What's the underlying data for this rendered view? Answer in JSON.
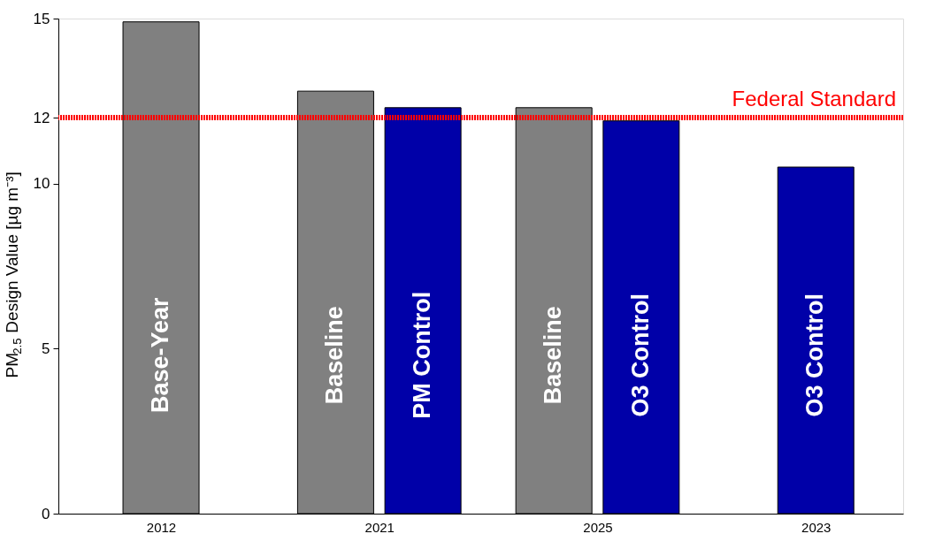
{
  "chart_data": {
    "type": "bar",
    "categories": [
      "2012",
      "2021",
      "2025",
      "2023"
    ],
    "series": [
      {
        "color": "#808080",
        "values": [
          14.9,
          12.8,
          12.3,
          null
        ]
      },
      {
        "color": "#0000a8",
        "values": [
          null,
          12.3,
          11.9,
          10.5
        ]
      }
    ],
    "ylabel": "PM$_{2.5}$ Design Value [µg m⁻³]",
    "ylim": [
      0,
      15
    ],
    "yticks": [
      0,
      5,
      10,
      12,
      15
    ],
    "grid": false,
    "ref_lines": [
      {
        "axis": "y",
        "value": 12,
        "label": "Federal Standard",
        "color": "#ff0000",
        "line_style": "dotted"
      }
    ],
    "annotations": [
      "Base-Year",
      "Baseline",
      "PM Control",
      "Baseline",
      "O3 Control",
      "O3 Control"
    ]
  }
}
